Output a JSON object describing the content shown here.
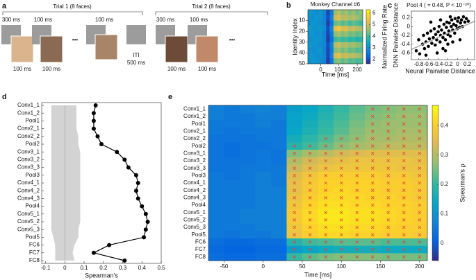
{
  "panel_a": {
    "label": "a",
    "trial1": "Trial 1 (8 faces)",
    "trial2": "Trial 2 (8 faces)",
    "t1_onset": "300 ms",
    "t1_gap": "100 ms",
    "t1_gap2": "100 ms",
    "dots1": "•••",
    "iti": "ITI",
    "iti_duration": "500 ms",
    "t2_onset": "300 ms",
    "t2_gap": "100 ms",
    "dots2": "•••",
    "face_durations": [
      "100 ms",
      "100 ms",
      "100 ms",
      "100 ms"
    ]
  },
  "chart_data": [
    {
      "type": "heatmap",
      "panel_label": "b",
      "title": "Monkey Channel #6",
      "xlabel": "Time [ms]",
      "ylabel": "Identity Index",
      "x": [
        -60,
        -40,
        -20,
        0,
        20,
        40,
        60,
        80,
        100,
        120,
        140,
        160,
        180,
        200,
        220
      ],
      "y": [
        2.5,
        7.5,
        12.5,
        17.5,
        22.5,
        27.5,
        32.5,
        37.5,
        42.5,
        47.5
      ],
      "values": [
        [
          3.1,
          3.0,
          2.9,
          3.1,
          2.8,
          1.9,
          2.6,
          4.6,
          4.9,
          4.5,
          4.7,
          4.4,
          4.6,
          4.3,
          4.5
        ],
        [
          3.0,
          2.9,
          3.1,
          3.0,
          2.7,
          2.0,
          2.7,
          5.0,
          5.2,
          4.8,
          4.9,
          4.7,
          4.8,
          4.6,
          4.4
        ],
        [
          2.9,
          3.1,
          3.0,
          2.9,
          2.8,
          1.8,
          2.5,
          4.2,
          4.4,
          4.1,
          4.3,
          4.0,
          4.2,
          4.1,
          3.9
        ],
        [
          3.2,
          3.0,
          3.0,
          3.1,
          2.9,
          2.0,
          2.8,
          5.3,
          5.5,
          5.1,
          5.2,
          4.9,
          5.0,
          4.8,
          4.7
        ],
        [
          3.0,
          3.1,
          2.9,
          3.0,
          2.7,
          1.9,
          2.6,
          4.5,
          4.7,
          4.4,
          4.6,
          4.3,
          4.4,
          4.2,
          4.3
        ],
        [
          2.9,
          3.0,
          3.1,
          3.0,
          2.8,
          1.8,
          2.4,
          3.9,
          4.1,
          3.9,
          4.0,
          3.8,
          3.9,
          3.7,
          3.8
        ],
        [
          3.1,
          3.0,
          3.0,
          2.9,
          2.8,
          2.0,
          2.7,
          4.8,
          5.0,
          4.7,
          4.8,
          4.6,
          4.7,
          4.5,
          4.4
        ],
        [
          3.0,
          2.9,
          3.0,
          3.1,
          2.7,
          1.9,
          2.6,
          4.4,
          4.6,
          4.3,
          4.5,
          4.2,
          4.3,
          4.1,
          4.2
        ],
        [
          3.1,
          3.0,
          2.9,
          3.0,
          2.8,
          1.9,
          2.7,
          5.1,
          5.3,
          4.9,
          5.0,
          4.8,
          4.9,
          4.7,
          4.6
        ],
        [
          3.0,
          3.1,
          3.0,
          2.9,
          2.7,
          1.8,
          2.5,
          4.3,
          4.5,
          4.2,
          4.4,
          4.1,
          4.2,
          4.0,
          4.1
        ]
      ],
      "xlim": [
        -70,
        230
      ],
      "ylim": [
        50,
        0
      ],
      "xticks": [
        0,
        100,
        200
      ],
      "yticks": [
        10,
        20,
        30,
        40,
        50
      ],
      "colorbar_label": "Normalized Firing Rate",
      "clim": [
        1.6,
        6.3
      ],
      "cticks": [
        2,
        3,
        4,
        5,
        6
      ],
      "colormap": [
        "#352a87",
        "#0363e1",
        "#1485d4",
        "#06a7c6",
        "#38b99e",
        "#92bf73",
        "#d9ba56",
        "#fcce2e",
        "#f9fb0e"
      ]
    },
    {
      "type": "scatter",
      "panel_label": "c",
      "title": "Pool 4 ( = 0.48, P < 10⁻²⁰)",
      "xlabel": "Neural Pairwise Distance",
      "ylabel": "DNN Pairwise Distance",
      "color": "#000000",
      "x": [
        -0.85,
        -0.8,
        -0.78,
        -0.72,
        -0.7,
        -0.68,
        -0.65,
        -0.62,
        -0.6,
        -0.58,
        -0.55,
        -0.53,
        -0.5,
        -0.48,
        -0.46,
        -0.45,
        -0.43,
        -0.4,
        -0.38,
        -0.36,
        -0.35,
        -0.33,
        -0.3,
        -0.28,
        -0.27,
        -0.25,
        -0.23,
        -0.22,
        -0.2,
        -0.18,
        -0.17,
        -0.15,
        -0.13,
        -0.12,
        -0.1,
        -0.08,
        -0.06,
        -0.05,
        -0.03,
        -0.01,
        0.0,
        0.02,
        0.04,
        0.06,
        0.08,
        0.1,
        0.12,
        0.15,
        0.18,
        0.22,
        -0.42,
        -0.3,
        -0.2,
        -0.1,
        -0.55,
        -0.35,
        -0.15,
        -0.65,
        -0.25,
        0.05
      ],
      "values": [
        -0.55,
        -0.3,
        -0.62,
        -0.4,
        -0.2,
        -0.5,
        -0.35,
        -0.15,
        -0.45,
        -0.28,
        -0.1,
        -0.38,
        -0.25,
        -0.05,
        -0.42,
        -0.18,
        -0.3,
        -0.12,
        0.0,
        -0.35,
        -0.2,
        -0.08,
        -0.25,
        0.05,
        -0.15,
        -0.3,
        -0.02,
        0.1,
        -0.18,
        -0.1,
        0.08,
        -0.22,
        0.0,
        0.15,
        -0.08,
        0.05,
        -0.15,
        0.18,
        0.02,
        -0.05,
        0.12,
        0.2,
        -0.02,
        0.08,
        0.15,
        0.0,
        0.22,
        0.1,
        0.18,
        0.12,
        -0.6,
        -0.5,
        -0.4,
        -0.35,
        0.1,
        0.15,
        0.22,
        -0.65,
        -0.55,
        -0.3
      ],
      "fit": {
        "x": [
          -0.95,
          0.35
        ],
        "values": [
          -0.52,
          0.12
        ],
        "color": "#aaaaaa"
      },
      "xlim": [
        -0.95,
        0.35
      ],
      "ylim": [
        -0.75,
        0.35
      ],
      "xticks": [
        -0.8,
        -0.6,
        -0.4,
        -0.2,
        0,
        0.2
      ],
      "yticks": [
        -0.6,
        -0.4,
        -0.2,
        0,
        0.2
      ]
    },
    {
      "type": "line",
      "panel_label": "d",
      "xlabel": "Spearman's",
      "color": "#000000",
      "categories": [
        "Conv1_1",
        "Conv1_2",
        "Pool1",
        "Conv2_1",
        "Conv2_2",
        "Pool2",
        "Conv3_1",
        "Conv3_2",
        "Conv3_3",
        "Pool3",
        "Conv4_1",
        "Conv4_2",
        "Conv4_3",
        "Pool4",
        "Conv5_1",
        "Conv5_2",
        "Conv5_3",
        "Pool5",
        "FC6",
        "FC7",
        "FC8"
      ],
      "values": [
        0.16,
        0.15,
        0.15,
        0.15,
        0.17,
        0.19,
        0.27,
        0.31,
        0.33,
        0.37,
        0.38,
        0.37,
        0.38,
        0.4,
        0.42,
        0.43,
        0.42,
        0.41,
        0.23,
        0.15,
        0.31
      ],
      "band_low": [
        -0.07,
        -0.07,
        -0.07,
        -0.07,
        -0.07,
        -0.07,
        -0.07,
        -0.07,
        -0.07,
        -0.07,
        -0.07,
        -0.07,
        -0.07,
        -0.07,
        -0.07,
        -0.07,
        -0.07,
        -0.06,
        -0.05,
        -0.05,
        -0.05
      ],
      "band_high": [
        0.06,
        0.06,
        0.06,
        0.06,
        0.07,
        0.07,
        0.08,
        0.08,
        0.08,
        0.08,
        0.08,
        0.08,
        0.08,
        0.08,
        0.08,
        0.08,
        0.07,
        0.07,
        0.05,
        0.04,
        0.05
      ],
      "band_color": "#d3d3d3",
      "xlim": [
        -0.12,
        0.5
      ],
      "xticks": [
        -0.1,
        0,
        0.1,
        0.2,
        0.3,
        0.4,
        0.5
      ]
    },
    {
      "type": "heatmap",
      "panel_label": "e",
      "xlabel": "Time [ms]",
      "categories": [
        "Conv1_1",
        "Conv1_2",
        "Pool1",
        "Conv2_1",
        "Conv2_2",
        "Pool2",
        "Conv3_1",
        "Conv3_2",
        "Conv3_3",
        "Pool3",
        "Conv4_1",
        "Conv4_2",
        "Conv4_3",
        "Pool4",
        "Conv5_1",
        "Conv5_2",
        "Conv5_3",
        "Pool5",
        "FC6",
        "FC7",
        "FC8"
      ],
      "x": [
        -60,
        -40,
        -20,
        0,
        20,
        40,
        60,
        80,
        100,
        120,
        140,
        160,
        180,
        200
      ],
      "values": [
        [
          0.06,
          0.05,
          0.06,
          0.07,
          0.06,
          0.12,
          0.14,
          0.17,
          0.2,
          0.23,
          0.25,
          0.26,
          0.27,
          0.27
        ],
        [
          0.06,
          0.05,
          0.05,
          0.06,
          0.06,
          0.13,
          0.15,
          0.18,
          0.21,
          0.24,
          0.26,
          0.27,
          0.28,
          0.28
        ],
        [
          0.05,
          0.05,
          0.05,
          0.06,
          0.05,
          0.13,
          0.16,
          0.19,
          0.22,
          0.25,
          0.27,
          0.28,
          0.28,
          0.28
        ],
        [
          0.05,
          0.04,
          0.05,
          0.05,
          0.05,
          0.14,
          0.17,
          0.2,
          0.23,
          0.26,
          0.28,
          0.28,
          0.29,
          0.29
        ],
        [
          0.04,
          0.04,
          0.04,
          0.05,
          0.05,
          0.16,
          0.19,
          0.22,
          0.25,
          0.27,
          0.29,
          0.29,
          0.3,
          0.3
        ],
        [
          0.04,
          0.03,
          0.04,
          0.04,
          0.05,
          0.18,
          0.21,
          0.24,
          0.27,
          0.29,
          0.3,
          0.31,
          0.31,
          0.31
        ],
        [
          0.04,
          0.03,
          0.04,
          0.05,
          0.04,
          0.26,
          0.29,
          0.31,
          0.33,
          0.34,
          0.35,
          0.35,
          0.35,
          0.35
        ],
        [
          0.04,
          0.04,
          0.04,
          0.05,
          0.04,
          0.3,
          0.33,
          0.35,
          0.36,
          0.37,
          0.37,
          0.37,
          0.37,
          0.36
        ],
        [
          0.04,
          0.04,
          0.05,
          0.05,
          0.05,
          0.32,
          0.35,
          0.37,
          0.38,
          0.38,
          0.38,
          0.38,
          0.37,
          0.37
        ],
        [
          0.05,
          0.04,
          0.05,
          0.06,
          0.05,
          0.35,
          0.38,
          0.4,
          0.4,
          0.4,
          0.4,
          0.39,
          0.39,
          0.38
        ],
        [
          0.05,
          0.05,
          0.05,
          0.06,
          0.05,
          0.36,
          0.39,
          0.41,
          0.41,
          0.41,
          0.41,
          0.4,
          0.4,
          0.39
        ],
        [
          0.05,
          0.05,
          0.05,
          0.06,
          0.06,
          0.36,
          0.39,
          0.41,
          0.42,
          0.41,
          0.41,
          0.4,
          0.4,
          0.39
        ],
        [
          0.05,
          0.05,
          0.05,
          0.06,
          0.06,
          0.37,
          0.4,
          0.42,
          0.42,
          0.42,
          0.41,
          0.41,
          0.4,
          0.39
        ],
        [
          0.05,
          0.05,
          0.05,
          0.06,
          0.06,
          0.38,
          0.41,
          0.43,
          0.43,
          0.42,
          0.42,
          0.41,
          0.41,
          0.4
        ],
        [
          0.05,
          0.05,
          0.06,
          0.06,
          0.06,
          0.39,
          0.42,
          0.44,
          0.44,
          0.43,
          0.43,
          0.42,
          0.41,
          0.4
        ],
        [
          0.05,
          0.05,
          0.06,
          0.06,
          0.06,
          0.39,
          0.42,
          0.44,
          0.44,
          0.43,
          0.43,
          0.42,
          0.41,
          0.4
        ],
        [
          0.05,
          0.05,
          0.05,
          0.06,
          0.06,
          0.38,
          0.41,
          0.43,
          0.43,
          0.42,
          0.42,
          0.41,
          0.4,
          0.4
        ],
        [
          0.05,
          0.04,
          0.05,
          0.05,
          0.06,
          0.37,
          0.4,
          0.42,
          0.42,
          0.41,
          0.41,
          0.4,
          0.4,
          0.39
        ],
        [
          0.03,
          0.02,
          0.02,
          0.03,
          0.03,
          0.18,
          0.21,
          0.22,
          0.23,
          0.23,
          0.23,
          0.22,
          0.22,
          0.22
        ],
        [
          0.02,
          0.01,
          0.01,
          0.02,
          0.02,
          0.12,
          0.14,
          0.15,
          0.16,
          0.16,
          0.16,
          0.15,
          0.15,
          0.15
        ],
        [
          0.03,
          0.02,
          0.02,
          0.03,
          0.03,
          0.2,
          0.23,
          0.25,
          0.26,
          0.26,
          0.26,
          0.25,
          0.25,
          0.25
        ]
      ],
      "sig_start": [
        140,
        140,
        140,
        140,
        80,
        40,
        40,
        40,
        40,
        40,
        40,
        40,
        40,
        40,
        40,
        40,
        40,
        40,
        40,
        40,
        40
      ],
      "sig_color": "#e8413a",
      "xlim": [
        -70,
        210
      ],
      "xticks": [
        -50,
        0,
        50,
        100,
        150,
        200
      ],
      "colorbar_label": "Spearman's ρ",
      "clim": [
        -0.06,
        0.47
      ],
      "cticks": [
        0,
        0.1,
        0.2,
        0.3,
        0.4
      ],
      "colormap": [
        "#352a87",
        "#0363e1",
        "#1485d4",
        "#06a7c6",
        "#38b99e",
        "#92bf73",
        "#d9ba56",
        "#fcce2e",
        "#f9fb0e"
      ]
    }
  ]
}
